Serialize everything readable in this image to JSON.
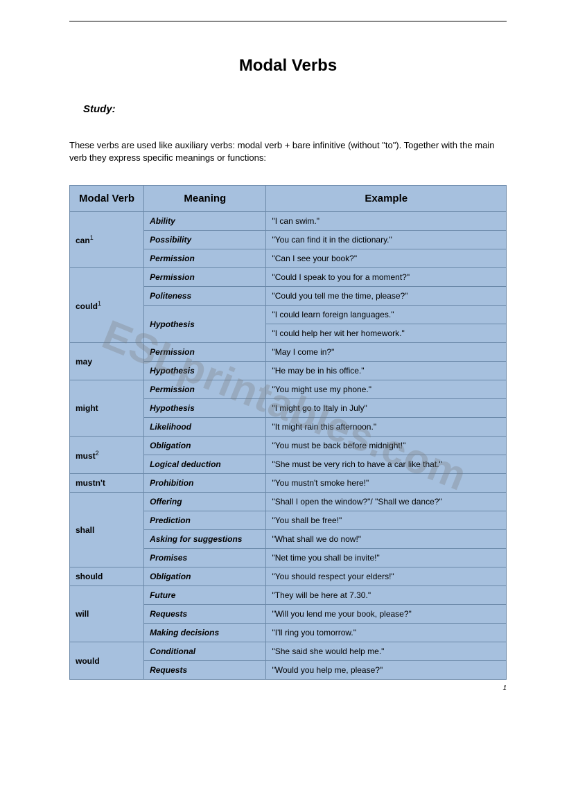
{
  "page": {
    "title": "Modal Verbs",
    "study_label": "Study:",
    "intro": "These verbs are used like auxiliary verbs: modal verb + bare infinitive (without \"to\"). Together with the main verb they express specific meanings or functions:",
    "page_number": "1",
    "watermark": "ESLprintables.com"
  },
  "table": {
    "headers": {
      "col1": "Modal Verb",
      "col2": "Meaning",
      "col3": "Example"
    },
    "colors": {
      "header_bg": "#a6c0de",
      "cell_bg": "#a6c0de",
      "border": "#6a88a8"
    },
    "groups": [
      {
        "verb": "can",
        "sup": "1",
        "rows": [
          {
            "meaning": "Ability",
            "example": "\"I can swim.\""
          },
          {
            "meaning": "Possibility",
            "example": "\"You can find it in the dictionary.\""
          },
          {
            "meaning": "Permission",
            "example": "\"Can I see your book?\""
          }
        ]
      },
      {
        "verb": "could",
        "sup": "1",
        "rows": [
          {
            "meaning": "Permission",
            "example": "\"Could I speak to you for a moment?\""
          },
          {
            "meaning": "Politeness",
            "example": "\"Could you tell me the time, please?\""
          },
          {
            "meaning": "Hypothesis",
            "meaning_rowspan": 2,
            "example": "\"I could learn foreign languages.\""
          },
          {
            "example": "\"I could help her wit her homework.\""
          }
        ]
      },
      {
        "verb": "may",
        "rows": [
          {
            "meaning": "Permission",
            "example": "\"May I come in?\""
          },
          {
            "meaning": "Hypothesis",
            "example": "\"He may be in his office.\""
          }
        ]
      },
      {
        "verb": "might",
        "rows": [
          {
            "meaning": "Permission",
            "example": "\"You might use my phone.\""
          },
          {
            "meaning": "Hypothesis",
            "example": "\"I might go to Italy in July\""
          },
          {
            "meaning": "Likelihood",
            "example": "\"It might rain this afternoon.\""
          }
        ]
      },
      {
        "verb": "must",
        "sup": "2",
        "rows": [
          {
            "meaning": "Obligation",
            "example": "\"You must be back before midnight!\""
          },
          {
            "meaning": "Logical deduction",
            "example": "\"She must be very rich to have a car like that.\""
          }
        ]
      },
      {
        "verb": "mustn't",
        "rows": [
          {
            "meaning": "Prohibition",
            "example": "\"You mustn't smoke here!\""
          }
        ]
      },
      {
        "verb": "shall",
        "rows": [
          {
            "meaning": "Offering",
            "example": "\"Shall I open the window?\"/ \"Shall we dance?\""
          },
          {
            "meaning": "Prediction",
            "example": "\"You shall be free!\""
          },
          {
            "meaning": "Asking for suggestions",
            "example": "\"What shall we do now!\""
          },
          {
            "meaning": "Promises",
            "example": "\"Net time you shall be invite!\""
          }
        ]
      },
      {
        "verb": "should",
        "rows": [
          {
            "meaning": "Obligation",
            "example": "\"You should respect your elders!\""
          }
        ]
      },
      {
        "verb": "will",
        "rows": [
          {
            "meaning": "Future",
            "example": "\"They will be here at 7.30.\""
          },
          {
            "meaning": "Requests",
            "example": "\"Will you lend me your book, please?\""
          },
          {
            "meaning": "Making decisions",
            "example": "\"I'll ring you tomorrow.\""
          }
        ]
      },
      {
        "verb": "would",
        "rows": [
          {
            "meaning": "Conditional",
            "example": "\"She said she would help me.\""
          },
          {
            "meaning": "Requests",
            "example": "\"Would you help me, please?\""
          }
        ]
      }
    ]
  }
}
